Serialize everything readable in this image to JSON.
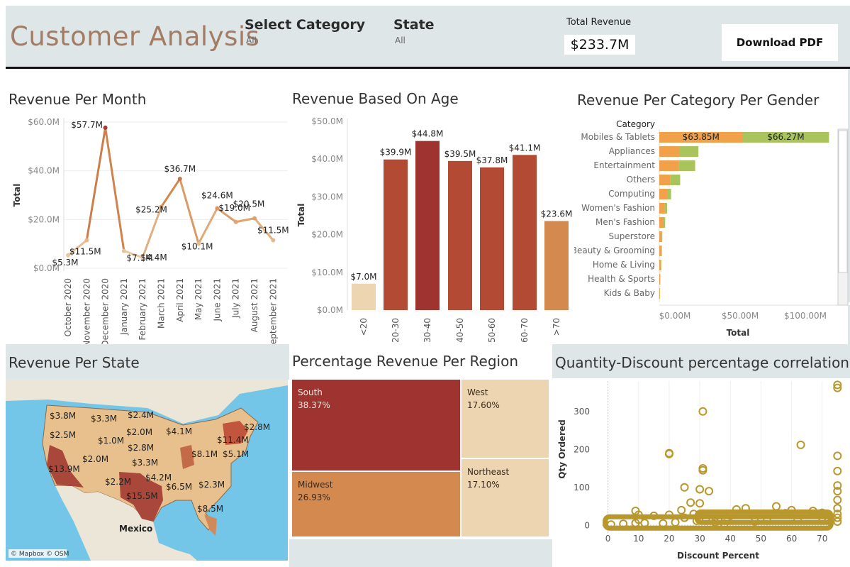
{
  "header": {
    "title": "Customer Analysis",
    "filters": [
      {
        "label": "Select Category",
        "value": "All"
      },
      {
        "label": "State",
        "value": "All"
      }
    ],
    "kpi_label": "Total Revenue",
    "kpi_value": "$233.7M",
    "download_label": "Download PDF"
  },
  "colors": {
    "header_bg": "#dfe6e7",
    "title": "#a47c64",
    "dark_red": "#9e3330",
    "red": "#b34a33",
    "orange": "#d48a4f",
    "light": "#edd5b1",
    "gold": "#b8972c",
    "female": "#f2a14b",
    "male": "#a9c45c",
    "water": "#74c6e8"
  },
  "panels": {
    "month": {
      "title": "Revenue Per Month"
    },
    "age": {
      "title": "Revenue Based On Age"
    },
    "gender": {
      "title": "Revenue Per Category Per Gender"
    },
    "state": {
      "title": "Revenue Per State",
      "map_label": "Mexico",
      "attribution": "© Mapbox © OSM"
    },
    "region": {
      "title": "Percentage Revenue Per Region"
    },
    "scatter": {
      "title": "Quantity-Discount percentage correlation"
    }
  },
  "chart_data": [
    {
      "id": "month",
      "type": "line",
      "title": "Revenue Per Month",
      "ylabel": "Total",
      "ylim": [
        0,
        60
      ],
      "yticks": [
        "$0.0M",
        "$20.0M",
        "$40.0M",
        "$60.0M"
      ],
      "categories": [
        "October 2020",
        "November 2020",
        "December 2020",
        "January 2021",
        "February 2021",
        "March 2021",
        "April 2021",
        "May 2021",
        "June 2021",
        "July 2021",
        "August 2021",
        "September 2021"
      ],
      "values": [
        5.3,
        11.5,
        57.7,
        7.1,
        4.4,
        25.2,
        36.7,
        10.1,
        24.6,
        19.0,
        20.5,
        11.5
      ],
      "labels": [
        "$5.3M",
        "$11.5M",
        "$57.7M",
        "$7.1M",
        "$4.4M",
        "$25.2M",
        "$36.7M",
        "$10.1M",
        "$24.6M",
        "$19.0M",
        "$20.5M",
        "$11.5M"
      ]
    },
    {
      "id": "age",
      "type": "bar",
      "title": "Revenue Based On Age",
      "ylabel": "Total",
      "ylim": [
        0,
        50
      ],
      "yticks": [
        "$0.0M",
        "$10.0M",
        "$20.0M",
        "$30.0M",
        "$40.0M",
        "$50.0M"
      ],
      "categories": [
        "<20",
        "20-30",
        "30-40",
        "40-50",
        "50-60",
        "60-70",
        ">70"
      ],
      "values": [
        7.0,
        39.9,
        44.8,
        39.5,
        37.8,
        41.1,
        23.6
      ],
      "labels": [
        "$7.0M",
        "$39.9M",
        "$44.8M",
        "$39.5M",
        "$37.8M",
        "$41.1M",
        "$23.6M"
      ]
    },
    {
      "id": "gender",
      "type": "bar",
      "title": "Revenue Per Category Per Gender",
      "row_header": "Category",
      "xlabel": "Total",
      "xlim": [
        0,
        130
      ],
      "xticks": [
        "$0.00M",
        "$50.00M",
        "$100.00M"
      ],
      "categories": [
        "Mobiles & Tablets",
        "Appliances",
        "Entertainment",
        "Others",
        "Computing",
        "Women's Fashion",
        "Men's Fashion",
        "Superstore",
        "Beauty & Grooming",
        "Home & Living",
        "Health & Sports",
        "Kids & Baby"
      ],
      "series": [
        {
          "values": [
            63.85,
            15.5,
            15.0,
            8.5,
            6.0,
            4.0,
            3.0,
            1.5,
            1.5,
            1.2,
            0.6,
            0.4
          ],
          "labels": [
            "$63.85M",
            "",
            "",
            "",
            "",
            "",
            "",
            "",
            "",
            "",
            "",
            ""
          ]
        },
        {
          "values": [
            66.27,
            14.5,
            12.5,
            7.5,
            3.0,
            2.0,
            1.5,
            0.8,
            0.5,
            0.4,
            0.2,
            0.2
          ],
          "labels": [
            "$66.27M",
            "",
            "",
            "",
            "",
            "",
            "",
            "",
            "",
            "",
            "",
            ""
          ]
        }
      ]
    },
    {
      "id": "state",
      "type": "map",
      "title": "Revenue Per State",
      "labels": [
        "$3.8M",
        "$3.3M",
        "$2.4M",
        "$2.5M",
        "$2.0M",
        "$4.1M",
        "$2.8M",
        "$1.0M",
        "$2.8M",
        "$11.4M",
        "$8.1M",
        "$5.1M",
        "$2.0M",
        "$3.3M",
        "$13.9M",
        "$2.2M",
        "$4.2M",
        "$6.5M",
        "$2.3M",
        "$15.5M",
        "$8.5M"
      ]
    },
    {
      "id": "region",
      "type": "treemap",
      "title": "Percentage Revenue Per Region",
      "categories": [
        "South",
        "Midwest",
        "West",
        "Northeast"
      ],
      "values": [
        38.37,
        26.93,
        17.6,
        17.1
      ],
      "labels": [
        "38.37%",
        "26.93%",
        "17.60%",
        "17.10%"
      ]
    },
    {
      "id": "scatter",
      "type": "scatter",
      "title": "Quantity-Discount percentage correlation",
      "xlabel": "Discount Percent",
      "ylabel": "Qty Ordered",
      "xlim": [
        -2,
        74
      ],
      "ylim": [
        -20,
        380
      ],
      "xticks": [
        0,
        10,
        20,
        30,
        40,
        50,
        60,
        70
      ],
      "yticks": [
        0,
        100,
        200,
        300
      ],
      "points": [
        [
          1,
          2
        ],
        [
          5,
          4
        ],
        [
          9,
          6
        ],
        [
          9,
          38
        ],
        [
          10,
          28
        ],
        [
          10,
          15
        ],
        [
          12,
          6
        ],
        [
          15,
          25
        ],
        [
          18,
          5
        ],
        [
          20,
          190
        ],
        [
          20,
          188
        ],
        [
          20,
          28
        ],
        [
          22,
          8
        ],
        [
          24,
          40
        ],
        [
          25,
          100
        ],
        [
          25,
          20
        ],
        [
          27,
          60
        ],
        [
          28,
          30
        ],
        [
          29,
          12
        ],
        [
          30,
          95
        ],
        [
          30,
          58
        ],
        [
          30,
          30
        ],
        [
          31,
          150
        ],
        [
          31,
          145
        ],
        [
          31,
          300
        ],
        [
          32,
          12
        ],
        [
          33,
          90
        ],
        [
          35,
          8
        ],
        [
          36,
          15
        ],
        [
          38,
          4
        ],
        [
          40,
          25
        ],
        [
          42,
          42
        ],
        [
          45,
          45
        ],
        [
          48,
          10
        ],
        [
          52,
          12
        ],
        [
          55,
          50
        ],
        [
          58,
          32
        ],
        [
          60,
          40
        ],
        [
          62,
          15
        ],
        [
          63,
          212
        ],
        [
          65,
          28
        ],
        [
          67,
          38
        ],
        [
          70,
          20
        ],
        [
          70,
          33
        ],
        [
          72,
          30
        ],
        [
          75,
          370
        ],
        [
          75,
          362
        ],
        [
          75,
          183
        ],
        [
          75,
          143
        ],
        [
          75,
          105
        ],
        [
          75,
          90
        ],
        [
          75,
          67
        ],
        [
          75,
          45
        ],
        [
          75,
          30
        ],
        [
          75,
          20
        ],
        [
          75,
          10
        ]
      ],
      "dense_band": [
        [
          0,
          72,
          0,
          15
        ],
        [
          30,
          72,
          15,
          28
        ]
      ]
    }
  ]
}
